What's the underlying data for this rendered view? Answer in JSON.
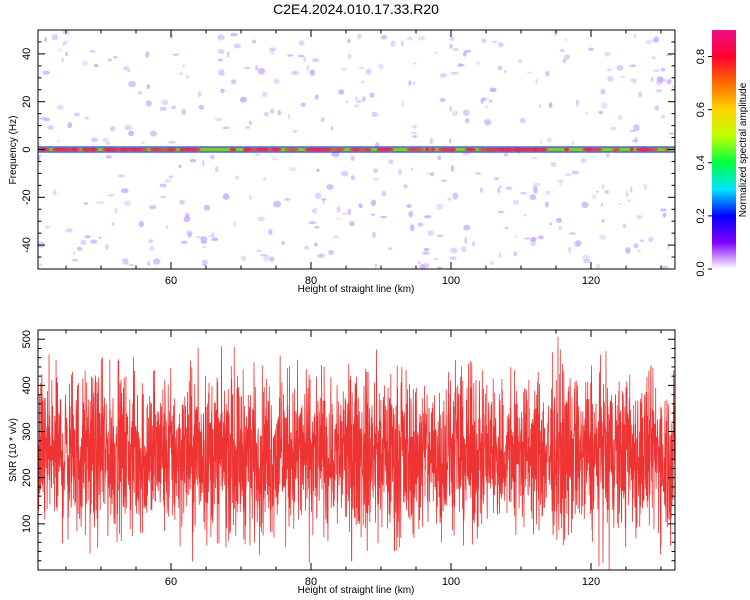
{
  "title": "C2E4.2024.010.17.33.R20",
  "chart_data": [
    {
      "type": "heatmap",
      "xlabel": "Height of straight line (km)",
      "ylabel": "Frequency (Hz)",
      "xlim": [
        41,
        132
      ],
      "ylim": [
        -50,
        50
      ],
      "xticks": [
        60,
        80,
        100,
        120
      ],
      "yticks": [
        -40,
        -20,
        0,
        20,
        40
      ],
      "xtick_labels": [
        "60",
        "80",
        "100",
        "120"
      ],
      "ytick_labels": [
        "-40",
        "-20",
        "0",
        "20",
        "40"
      ],
      "signal_band": {
        "frequency_center": 0,
        "half_width": 1.0,
        "colors": [
          "#f0206a",
          "#7ad020",
          "#2020ff"
        ]
      },
      "background_speckle": {
        "color": "#c8a8ff",
        "typical_amplitude": 0.05
      },
      "colorbar": {
        "label": "Normalized spectral amplitude",
        "range": [
          0.0,
          0.9
        ],
        "ticks": [
          0.0,
          0.2,
          0.4,
          0.6,
          0.8
        ],
        "tick_labels": [
          "0.0",
          "0.2",
          "0.4",
          "0.6",
          "0.8"
        ],
        "colormap": [
          "#ffffff",
          "#7f00ff",
          "#0000ff",
          "#00e5ff",
          "#00ff40",
          "#c0ff00",
          "#ffd400",
          "#ff6a00",
          "#ff0030",
          "#f0108a"
        ]
      },
      "grid": false
    },
    {
      "type": "line",
      "xlabel": "Height of straight line (km)",
      "ylabel": "SNR (10 * v/v)",
      "xlim": [
        41,
        132
      ],
      "ylim": [
        0,
        520
      ],
      "xticks": [
        60,
        80,
        100,
        120
      ],
      "yticks": [
        100,
        200,
        300,
        400,
        500
      ],
      "xtick_labels": [
        "60",
        "80",
        "100",
        "120"
      ],
      "ytick_labels": [
        "100",
        "200",
        "300",
        "400",
        "500"
      ],
      "series": [
        {
          "color": "#ee3333",
          "mean": 250,
          "typical_min": 120,
          "typical_max": 400,
          "min": 0,
          "max": 520,
          "n_points": 3000
        }
      ],
      "grid": false
    }
  ]
}
